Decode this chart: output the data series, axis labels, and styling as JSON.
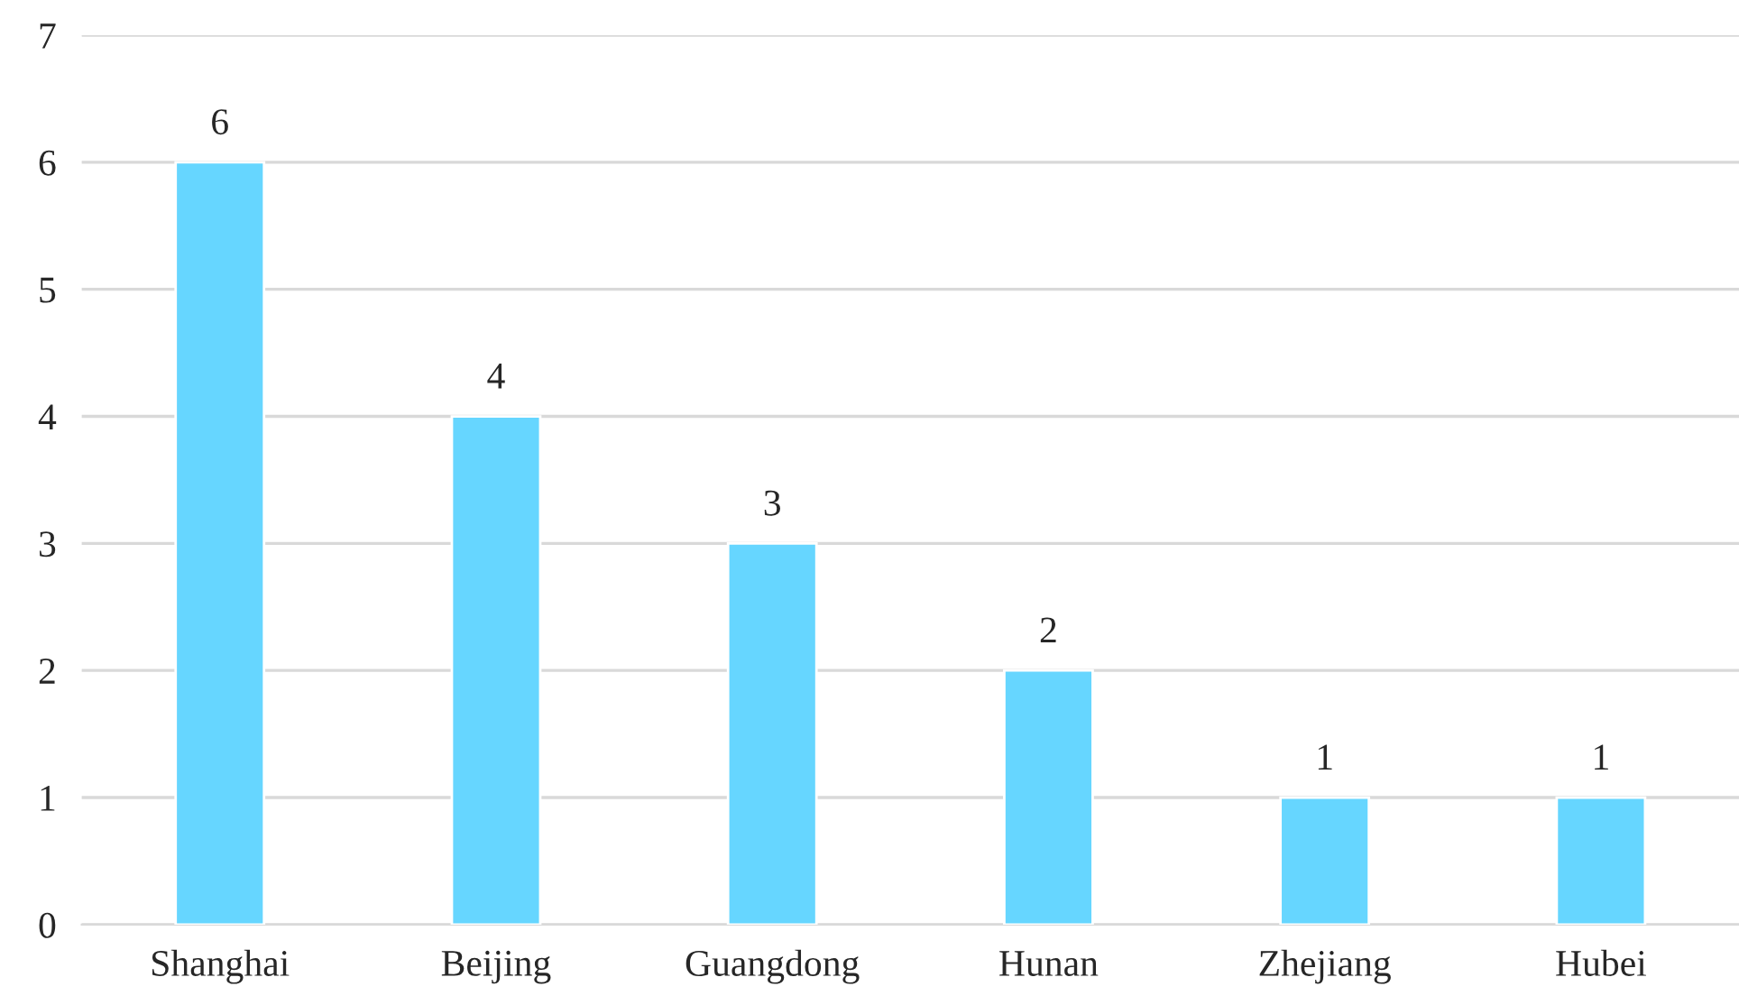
{
  "chart_data": {
    "type": "bar",
    "categories": [
      "Shanghai",
      "Beijing",
      "Guangdong",
      "Hunan",
      "Zhejiang",
      "Hubei"
    ],
    "values": [
      6,
      4,
      3,
      2,
      1,
      1
    ],
    "color": "#66d6ff",
    "ylim": [
      0,
      7
    ],
    "yticks": [
      0,
      1,
      2,
      3,
      4,
      5,
      6,
      7
    ],
    "grid": "y",
    "data_labels": true
  }
}
